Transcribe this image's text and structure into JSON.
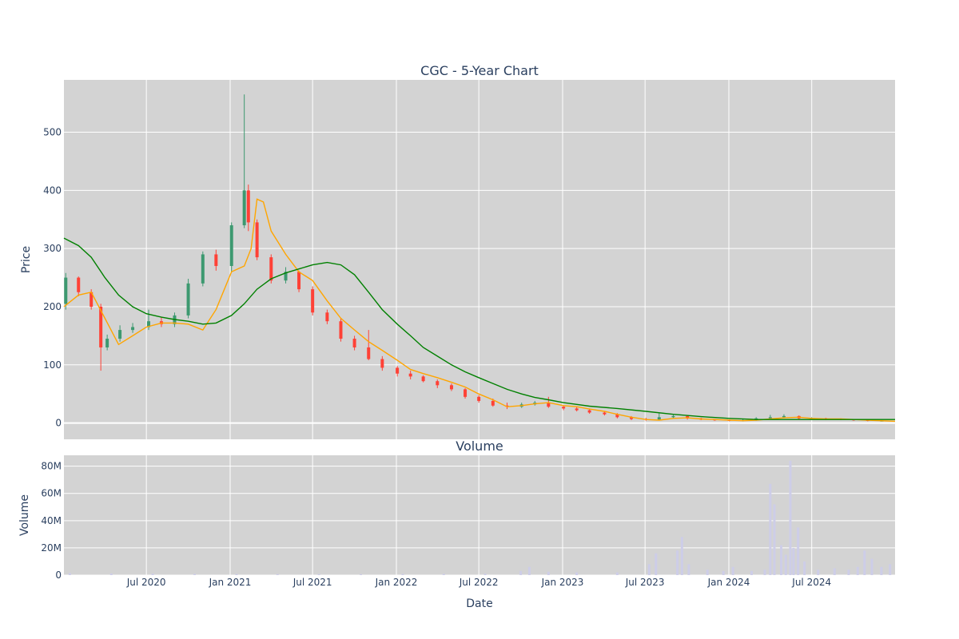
{
  "chart_data": [
    {
      "type": "candlestick",
      "title": "CGC - 5-Year Chart",
      "ylabel": "Price",
      "ylim": [
        -28,
        590
      ],
      "y_ticks": [
        "0",
        "100",
        "200",
        "300",
        "400",
        "500"
      ],
      "x_range": [
        "2020-01-02",
        "2024-12-31"
      ],
      "colors": {
        "up": "#3d9970",
        "down": "#ff4136",
        "ma_short": "#ffa500",
        "ma_long": "#008000",
        "plot_bg": "#d3d3d3"
      },
      "series": [
        {
          "name": "candles",
          "type": "candlestick",
          "x": [
            "2020-01-06",
            "2020-02-03",
            "2020-03-02",
            "2020-03-23",
            "2020-04-06",
            "2020-05-04",
            "2020-06-01",
            "2020-07-06",
            "2020-08-03",
            "2020-09-01",
            "2020-10-01",
            "2020-11-02",
            "2020-12-01",
            "2021-01-04",
            "2021-02-01",
            "2021-02-10",
            "2021-03-01",
            "2021-04-01",
            "2021-05-03",
            "2021-06-01",
            "2021-07-01",
            "2021-08-02",
            "2021-09-01",
            "2021-10-01",
            "2021-11-01",
            "2021-12-01",
            "2022-01-03",
            "2022-02-01",
            "2022-03-01",
            "2022-04-01",
            "2022-05-02",
            "2022-06-01",
            "2022-07-01",
            "2022-08-01",
            "2022-09-01",
            "2022-10-03",
            "2022-11-01",
            "2022-12-01",
            "2023-01-03",
            "2023-02-01",
            "2023-03-01",
            "2023-04-03",
            "2023-05-01",
            "2023-06-01",
            "2023-07-03",
            "2023-08-01",
            "2023-09-01",
            "2023-10-02",
            "2023-11-01",
            "2023-12-01",
            "2024-01-02",
            "2024-02-01",
            "2024-03-01",
            "2024-04-01",
            "2024-05-01",
            "2024-06-03",
            "2024-07-01",
            "2024-08-01",
            "2024-09-03",
            "2024-10-01",
            "2024-11-01",
            "2024-12-02"
          ],
          "open": [
            205,
            250,
            225,
            200,
            130,
            145,
            160,
            165,
            175,
            170,
            185,
            240,
            290,
            270,
            340,
            400,
            345,
            285,
            245,
            260,
            230,
            190,
            175,
            145,
            130,
            110,
            95,
            85,
            80,
            72,
            65,
            58,
            45,
            38,
            30,
            28,
            32,
            35,
            28,
            25,
            22,
            18,
            15,
            10,
            7,
            6,
            10,
            12,
            8,
            6,
            5,
            4,
            5,
            8,
            10,
            12,
            8,
            8,
            7,
            6,
            5,
            4
          ],
          "close": [
            250,
            225,
            200,
            130,
            145,
            160,
            165,
            175,
            170,
            185,
            240,
            290,
            270,
            340,
            400,
            345,
            285,
            245,
            260,
            230,
            190,
            175,
            145,
            130,
            110,
            95,
            85,
            80,
            72,
            65,
            58,
            45,
            38,
            30,
            28,
            32,
            35,
            28,
            25,
            22,
            18,
            15,
            10,
            7,
            6,
            10,
            12,
            8,
            6,
            5,
            4,
            5,
            8,
            10,
            12,
            8,
            8,
            7,
            6,
            5,
            4,
            4
          ],
          "high": [
            258,
            252,
            230,
            205,
            152,
            168,
            172,
            195,
            182,
            190,
            248,
            295,
            298,
            345,
            565,
            410,
            350,
            290,
            268,
            262,
            235,
            195,
            180,
            150,
            160,
            115,
            98,
            90,
            82,
            75,
            68,
            60,
            48,
            42,
            35,
            35,
            38,
            45,
            30,
            28,
            25,
            20,
            17,
            12,
            9,
            18,
            14,
            13,
            9,
            7,
            6,
            7,
            10,
            14,
            15,
            13,
            10,
            9,
            8,
            7,
            6,
            5
          ],
          "low": [
            195,
            218,
            195,
            90,
            125,
            140,
            155,
            160,
            165,
            165,
            180,
            235,
            262,
            260,
            335,
            330,
            280,
            240,
            240,
            225,
            185,
            170,
            140,
            125,
            108,
            90,
            80,
            75,
            70,
            60,
            55,
            42,
            35,
            28,
            24,
            26,
            30,
            26,
            22,
            20,
            16,
            13,
            8,
            5,
            4,
            5,
            8,
            6,
            5,
            4,
            3,
            3,
            4,
            7,
            9,
            7,
            6,
            5,
            5,
            4,
            3,
            3
          ]
        },
        {
          "name": "ma_short",
          "type": "line",
          "x": [
            "2020-01-02",
            "2020-02-03",
            "2020-03-02",
            "2020-04-01",
            "2020-05-01",
            "2020-06-01",
            "2020-07-01",
            "2020-08-03",
            "2020-09-01",
            "2020-10-01",
            "2020-11-02",
            "2020-12-01",
            "2021-01-04",
            "2021-02-01",
            "2021-02-16",
            "2021-03-01",
            "2021-03-15",
            "2021-04-01",
            "2021-05-03",
            "2021-06-01",
            "2021-07-01",
            "2021-08-02",
            "2021-09-01",
            "2021-10-01",
            "2021-11-01",
            "2021-12-01",
            "2022-01-03",
            "2022-02-01",
            "2022-03-01",
            "2022-04-01",
            "2022-05-02",
            "2022-06-01",
            "2022-07-01",
            "2022-08-01",
            "2022-09-01",
            "2022-10-03",
            "2022-11-01",
            "2022-12-01",
            "2023-01-03",
            "2023-02-01",
            "2023-03-01",
            "2023-04-03",
            "2023-05-01",
            "2023-06-01",
            "2023-07-03",
            "2023-08-01",
            "2023-09-01",
            "2023-10-02",
            "2023-11-01",
            "2023-12-01",
            "2024-01-02",
            "2024-02-01",
            "2024-03-01",
            "2024-04-01",
            "2024-05-01",
            "2024-06-03",
            "2024-07-01",
            "2024-08-01",
            "2024-09-03",
            "2024-10-01",
            "2024-11-01",
            "2024-12-31"
          ],
          "y": [
            200,
            220,
            225,
            180,
            135,
            150,
            165,
            172,
            172,
            170,
            160,
            195,
            260,
            270,
            300,
            385,
            380,
            330,
            290,
            260,
            245,
            210,
            180,
            160,
            140,
            125,
            108,
            92,
            85,
            78,
            70,
            62,
            50,
            40,
            28,
            30,
            33,
            35,
            30,
            28,
            24,
            20,
            15,
            10,
            6,
            5,
            8,
            9,
            7,
            6,
            5,
            4,
            5,
            7,
            9,
            10,
            8,
            7,
            7,
            6,
            5,
            3
          ]
        },
        {
          "name": "ma_long",
          "type": "line",
          "x": [
            "2020-01-02",
            "2020-02-03",
            "2020-03-02",
            "2020-04-01",
            "2020-05-01",
            "2020-06-01",
            "2020-07-01",
            "2020-08-03",
            "2020-09-01",
            "2020-10-01",
            "2020-11-02",
            "2020-12-01",
            "2021-01-04",
            "2021-02-01",
            "2021-03-01",
            "2021-04-01",
            "2021-05-03",
            "2021-06-01",
            "2021-07-01",
            "2021-08-02",
            "2021-09-01",
            "2021-10-01",
            "2021-11-01",
            "2021-12-01",
            "2022-01-03",
            "2022-02-01",
            "2022-03-01",
            "2022-04-01",
            "2022-05-02",
            "2022-06-01",
            "2022-07-01",
            "2022-08-01",
            "2022-09-01",
            "2022-10-03",
            "2022-11-01",
            "2022-12-01",
            "2023-01-03",
            "2023-03-01",
            "2023-05-01",
            "2023-07-03",
            "2023-09-01",
            "2023-11-01",
            "2024-01-02",
            "2024-03-01",
            "2024-05-01",
            "2024-07-01",
            "2024-09-03",
            "2024-12-31"
          ],
          "y": [
            318,
            305,
            285,
            250,
            220,
            200,
            188,
            182,
            178,
            175,
            170,
            172,
            185,
            205,
            230,
            248,
            258,
            265,
            272,
            276,
            272,
            255,
            225,
            195,
            170,
            150,
            130,
            115,
            100,
            88,
            78,
            68,
            58,
            50,
            44,
            40,
            35,
            29,
            25,
            20,
            15,
            11,
            8,
            6,
            6,
            6,
            6,
            6
          ]
        }
      ]
    },
    {
      "type": "bar",
      "title": "Volume",
      "ylabel": "Volume",
      "xlabel": "Date",
      "ylim": [
        0,
        88000000
      ],
      "y_ticks": [
        "0",
        "20M",
        "40M",
        "60M",
        "80M"
      ],
      "x_ticks": [
        "Jul 2020",
        "Jan 2021",
        "Jul 2021",
        "Jan 2022",
        "Jul 2022",
        "Jan 2023",
        "Jul 2023",
        "Jan 2024",
        "Jul 2024"
      ],
      "x_range": [
        "2020-01-02",
        "2024-12-31"
      ],
      "colors": {
        "bar": "#cdcde8",
        "plot_bg": "#d3d3d3"
      },
      "series": [
        {
          "name": "volume",
          "x": [
            "2020-01-15",
            "2020-04-15",
            "2020-07-15",
            "2020-10-15",
            "2021-01-15",
            "2021-04-15",
            "2021-07-15",
            "2021-10-15",
            "2022-01-15",
            "2022-04-15",
            "2022-07-15",
            "2022-10-01",
            "2022-10-20",
            "2022-12-01",
            "2023-02-01",
            "2023-05-01",
            "2023-07-10",
            "2023-07-25",
            "2023-09-10",
            "2023-09-20",
            "2023-10-05",
            "2023-11-15",
            "2023-12-20",
            "2024-01-10",
            "2024-02-20",
            "2024-03-20",
            "2024-04-01",
            "2024-04-10",
            "2024-04-25",
            "2024-05-05",
            "2024-05-15",
            "2024-05-22",
            "2024-06-01",
            "2024-06-15",
            "2024-07-15",
            "2024-08-20",
            "2024-09-20",
            "2024-10-10",
            "2024-10-25",
            "2024-11-10",
            "2024-12-01",
            "2024-12-20"
          ],
          "values": [
            1500000,
            1200000,
            1000000,
            900000,
            800000,
            700000,
            700000,
            700000,
            800000,
            900000,
            1000000,
            3000000,
            6000000,
            2500000,
            2000000,
            2000000,
            8000000,
            16000000,
            18000000,
            28000000,
            8000000,
            4000000,
            3000000,
            6000000,
            3000000,
            4000000,
            67000000,
            52000000,
            22000000,
            15000000,
            84000000,
            20000000,
            35000000,
            10000000,
            4000000,
            5000000,
            4000000,
            6000000,
            18000000,
            12000000,
            6000000,
            8000000
          ]
        }
      ]
    }
  ]
}
